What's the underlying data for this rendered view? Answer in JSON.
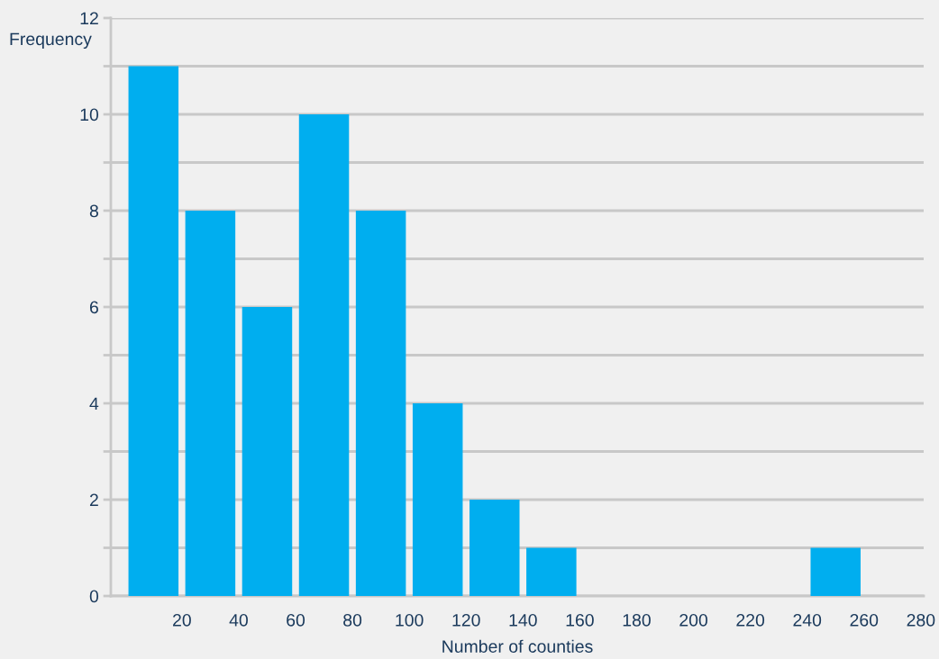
{
  "chart_data": {
    "type": "histogram",
    "ylabel": "Frequency",
    "xlabel": "Number of counties",
    "bins": [
      0,
      20,
      40,
      60,
      80,
      100,
      120,
      140,
      160,
      180,
      200,
      220,
      240,
      260,
      280
    ],
    "values": [
      11,
      8,
      6,
      10,
      8,
      4,
      2,
      1,
      0,
      0,
      0,
      0,
      1,
      0
    ],
    "color": "#00aeef",
    "xlim": [
      -5,
      281
    ],
    "xticks": [
      20,
      40,
      60,
      80,
      100,
      120,
      140,
      160,
      180,
      200,
      220,
      240,
      260,
      280
    ],
    "ylim": [
      0,
      12
    ],
    "yticks": [
      0,
      {
        "value": 1,
        "label": null
      },
      2,
      {
        "value": 3,
        "label": null
      },
      4,
      {
        "value": 5,
        "label": null
      },
      6,
      {
        "value": 7,
        "label": null
      },
      8,
      {
        "value": 9,
        "label": null
      },
      10,
      {
        "value": 11,
        "label": null
      },
      12
    ],
    "grid": "y",
    "legend": false
  }
}
